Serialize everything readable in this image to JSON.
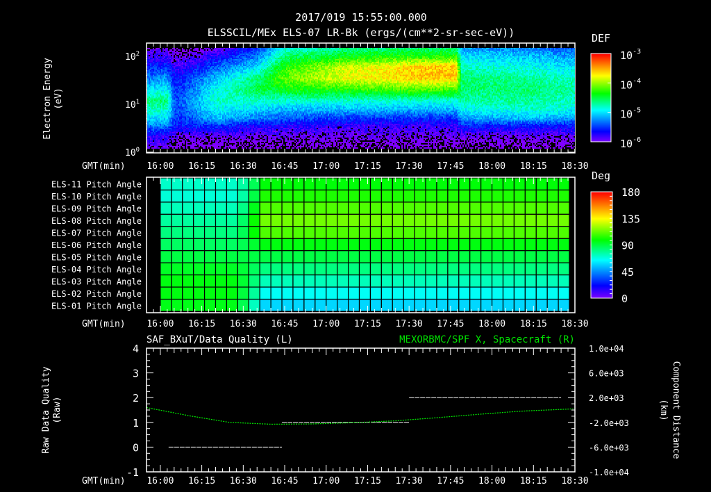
{
  "header": {
    "timestamp": "2017/019 15:55:00.000",
    "title": "ELSSCIL/MEx ELS-07 LR-Bk  (ergs/(cm**2-sr-sec-eV))"
  },
  "time_axis": {
    "label": "GMT(min)",
    "start_min": 955,
    "end_min": 1110,
    "ticks": [
      "16:00",
      "16:15",
      "16:30",
      "16:45",
      "17:00",
      "17:15",
      "17:30",
      "17:45",
      "18:00",
      "18:15",
      "18:30"
    ],
    "tick_mins": [
      960,
      975,
      990,
      1005,
      1020,
      1035,
      1050,
      1065,
      1080,
      1095,
      1110
    ]
  },
  "colors": {
    "background": "#000000",
    "axis": "#ffffff",
    "quality_line": "#ffffff",
    "position_line": "#00e000",
    "right_title": "#00e000"
  },
  "chart_data": [
    {
      "type": "heatmap",
      "name": "energy-spectrogram",
      "ylabel_line1": "Electron Energy",
      "ylabel_line2": "(eV)",
      "yscale": "log",
      "ylim": [
        1,
        150
      ],
      "y_ticks": [
        {
          "base": "10",
          "exp": "0",
          "value": 1
        },
        {
          "base": "10",
          "exp": "1",
          "value": 10
        },
        {
          "base": "10",
          "exp": "2",
          "value": 100
        }
      ],
      "colorbar": {
        "label": "DEF",
        "scale": "log",
        "range_log10": [
          -6,
          -3
        ],
        "ticks": [
          {
            "base": "10",
            "exp": "-3",
            "value": -3
          },
          {
            "base": "10",
            "exp": "-4",
            "value": -4
          },
          {
            "base": "10",
            "exp": "-5",
            "value": -5
          },
          {
            "base": "10",
            "exp": "-6",
            "value": -6
          }
        ]
      },
      "energies_eV": [
        1.2,
        2,
        3.5,
        5,
        8,
        12,
        20,
        35,
        60,
        100,
        150
      ],
      "times_min": [
        955,
        962,
        965,
        967,
        980,
        995,
        1005,
        1025,
        1055,
        1067,
        1069,
        1095,
        1110
      ],
      "log10_def": [
        [
          -6.0,
          -5.8,
          -5.3,
          -5.0,
          -4.8,
          -4.6,
          -5.0,
          -5.3,
          -5.6,
          -5.8,
          -6.0
        ],
        [
          -6.0,
          -5.8,
          -5.3,
          -5.0,
          -4.8,
          -4.6,
          -4.9,
          -5.2,
          -5.5,
          -5.8,
          -6.0
        ],
        [
          -6.2,
          -6.0,
          -5.6,
          -5.5,
          -5.4,
          -5.4,
          -5.5,
          -5.6,
          -5.8,
          -6.0,
          -6.2
        ],
        [
          -6.2,
          -6.0,
          -5.6,
          -5.5,
          -5.4,
          -5.4,
          -5.5,
          -5.6,
          -5.8,
          -6.0,
          -6.2
        ],
        [
          -6.2,
          -6.0,
          -5.5,
          -5.1,
          -4.9,
          -4.8,
          -4.9,
          -5.1,
          -5.4,
          -5.7,
          -6.0
        ],
        [
          -6.2,
          -6.0,
          -5.7,
          -5.3,
          -5.0,
          -4.8,
          -4.5,
          -4.6,
          -5.0,
          -5.3,
          -5.5
        ],
        [
          -6.2,
          -6.0,
          -5.7,
          -5.4,
          -5.1,
          -4.8,
          -4.4,
          -4.1,
          -4.3,
          -4.6,
          -4.9
        ],
        [
          -6.2,
          -6.0,
          -5.8,
          -5.5,
          -5.1,
          -4.8,
          -4.3,
          -3.8,
          -3.9,
          -4.4,
          -4.7
        ],
        [
          -6.2,
          -6.0,
          -5.8,
          -5.5,
          -5.1,
          -4.8,
          -4.2,
          -3.6,
          -3.6,
          -4.3,
          -4.6
        ],
        [
          -6.2,
          -6.0,
          -5.8,
          -5.5,
          -5.1,
          -4.8,
          -4.2,
          -3.6,
          -3.6,
          -4.3,
          -4.6
        ],
        [
          -6.2,
          -6.0,
          -5.6,
          -5.2,
          -4.9,
          -4.7,
          -4.6,
          -4.6,
          -4.8,
          -5.0,
          -5.2
        ],
        [
          -6.2,
          -6.0,
          -5.6,
          -5.1,
          -4.8,
          -4.7,
          -4.6,
          -4.7,
          -4.9,
          -5.1,
          -5.3
        ],
        [
          -6.2,
          -6.0,
          -5.6,
          -5.2,
          -4.9,
          -4.8,
          -4.7,
          -4.8,
          -5.0,
          -5.2,
          -5.4
        ]
      ]
    },
    {
      "type": "heatmap",
      "name": "pitch-angle",
      "rows": [
        "ELS-11 Pitch Angle",
        "ELS-10 Pitch Angle",
        "ELS-09 Pitch Angle",
        "ELS-08 Pitch Angle",
        "ELS-07 Pitch Angle",
        "ELS-06 Pitch Angle",
        "ELS-05 Pitch Angle",
        "ELS-04 Pitch Angle",
        "ELS-03 Pitch Angle",
        "ELS-02 Pitch Angle",
        "ELS-01 Pitch Angle"
      ],
      "colorbar": {
        "label": "Deg",
        "range": [
          0,
          180
        ],
        "ticks": [
          "180",
          "135",
          "90",
          "45",
          "0"
        ],
        "tick_values": [
          180,
          135,
          90,
          45,
          0
        ]
      },
      "column_start_min": 960,
      "column_step_min": 4,
      "column_count": 37,
      "transition_min": 993,
      "before_deg": [
        72,
        70,
        74,
        78,
        82,
        86,
        90,
        94,
        97,
        97,
        96
      ],
      "after_deg": [
        98,
        103,
        110,
        115,
        110,
        97,
        90,
        82,
        74,
        66,
        58
      ]
    },
    {
      "type": "line",
      "name": "quality-and-position",
      "left_title": "SAF_BXuT/Data Quality (L)",
      "right_title": "MEXORBMC/SPF X, Spacecraft (R)",
      "ylabel_left_line1": "Raw Data Quality",
      "ylabel_left_line2": "(Raw)",
      "ylabel_right_line1": "Component Distance",
      "ylabel_right_line2": "(km)",
      "ylim_left": [
        -1,
        4
      ],
      "y_ticks_left": [
        "4",
        "3",
        "2",
        "1",
        "0",
        "-1"
      ],
      "y_tick_values_left": [
        4,
        3,
        2,
        1,
        0,
        -1
      ],
      "ylim_right": [
        -10000,
        10000
      ],
      "y_ticks_right": [
        "1.0e+04",
        "6.0e+03",
        "2.0e+03",
        "-2.0e+03",
        "-6.0e+03",
        "-1.0e+04"
      ],
      "y_tick_values_right": [
        10000,
        6000,
        2000,
        -2000,
        -6000,
        -10000
      ],
      "quality_segments": [
        {
          "start_min": 963,
          "end_min": 1004,
          "value": 0
        },
        {
          "start_min": 1004,
          "end_min": 1050,
          "value": 1
        },
        {
          "start_min": 1050,
          "end_min": 1105,
          "value": 2
        }
      ],
      "position_x_km": {
        "times_min": [
          955,
          970,
          985,
          1000,
          1015,
          1030,
          1045,
          1060,
          1075,
          1090,
          1110
        ],
        "values": [
          400,
          -900,
          -2000,
          -2300,
          -2250,
          -2050,
          -1750,
          -1250,
          -700,
          -200,
          200
        ]
      }
    }
  ]
}
